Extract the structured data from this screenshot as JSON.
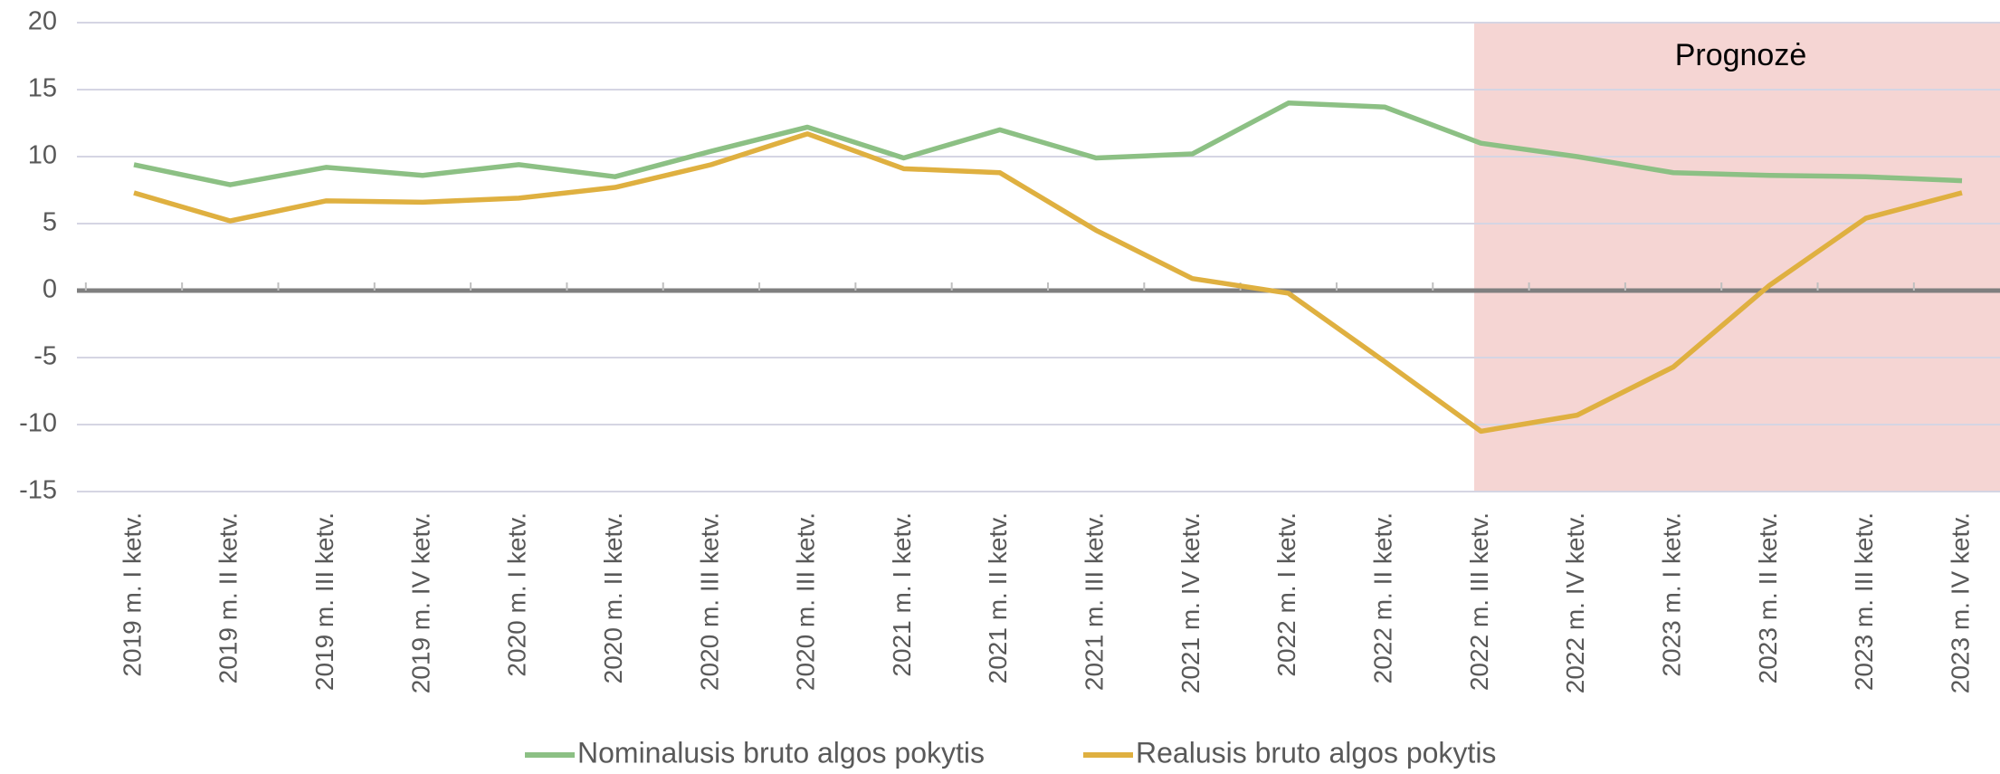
{
  "chart_data": {
    "type": "line",
    "categories": [
      "2019 m. I ketv.",
      "2019 m. II ketv.",
      "2019 m. III ketv.",
      "2019 m. IV ketv.",
      "2020 m. I ketv.",
      "2020 m. II ketv.",
      "2020 m. III ketv.",
      "2020 m. III ketv.",
      "2021 m. I ketv.",
      "2021 m. II ketv.",
      "2021 m. III ketv.",
      "2021 m. IV ketv.",
      "2022 m. I ketv.",
      "2022 m. II ketv.",
      "2022 m. III ketv.",
      "2022 m. IV ketv.",
      "2023 m. I ketv.",
      "2023 m. II ketv.",
      "2023 m. III ketv.",
      "2023 m. IV ketv."
    ],
    "series": [
      {
        "name": "Nominalusis bruto algos pokytis",
        "color": "#8cc084",
        "values": [
          9.4,
          7.9,
          9.2,
          8.6,
          9.4,
          8.5,
          10.4,
          12.2,
          9.9,
          12.0,
          9.9,
          10.2,
          14.0,
          13.7,
          11.0,
          10.0,
          8.8,
          8.6,
          8.5,
          8.2
        ]
      },
      {
        "name": "Realusis bruto algos pokytis",
        "color": "#dfb040",
        "values": [
          7.3,
          5.2,
          6.7,
          6.6,
          6.9,
          7.7,
          9.4,
          11.7,
          9.1,
          8.8,
          4.5,
          0.9,
          -0.2,
          -5.3,
          -10.5,
          -9.3,
          -5.7,
          0.4,
          5.4,
          7.3
        ]
      }
    ],
    "ylim": [
      -15,
      20
    ],
    "yticks": [
      -15,
      -10,
      -5,
      0,
      5,
      10,
      15,
      20
    ],
    "grid": true,
    "legend": "bottom",
    "forecast": {
      "label": "Prognozė",
      "from": "2022 m. III ketv.",
      "color": "#f5d5d3"
    }
  }
}
